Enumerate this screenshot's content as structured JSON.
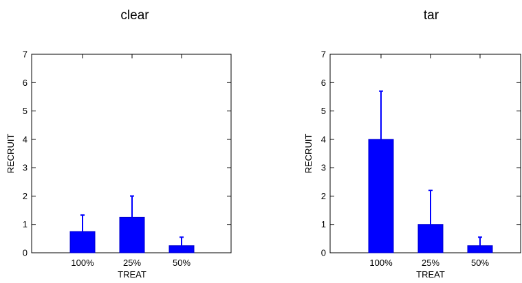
{
  "chart_data": [
    {
      "type": "bar",
      "title": "clear",
      "xlabel": "TREAT",
      "ylabel": "RECRUIT",
      "categories": [
        "100%",
        "25%",
        "50%"
      ],
      "values": [
        0.75,
        1.25,
        0.25
      ],
      "error_upper": [
        1.33,
        2.0,
        0.55
      ],
      "ylim": [
        0,
        7
      ],
      "yticks": [
        0,
        1,
        2,
        3,
        4,
        5,
        6,
        7
      ],
      "grid": false,
      "bar_color": "#0000ff"
    },
    {
      "type": "bar",
      "title": "tar",
      "xlabel": "TREAT",
      "ylabel": "RECRUIT",
      "categories": [
        "100%",
        "25%",
        "50%"
      ],
      "values": [
        4.0,
        1.0,
        0.25
      ],
      "error_upper": [
        5.7,
        2.2,
        0.55
      ],
      "ylim": [
        0,
        7
      ],
      "yticks": [
        0,
        1,
        2,
        3,
        4,
        5,
        6,
        7
      ],
      "grid": false,
      "bar_color": "#0000ff"
    }
  ]
}
